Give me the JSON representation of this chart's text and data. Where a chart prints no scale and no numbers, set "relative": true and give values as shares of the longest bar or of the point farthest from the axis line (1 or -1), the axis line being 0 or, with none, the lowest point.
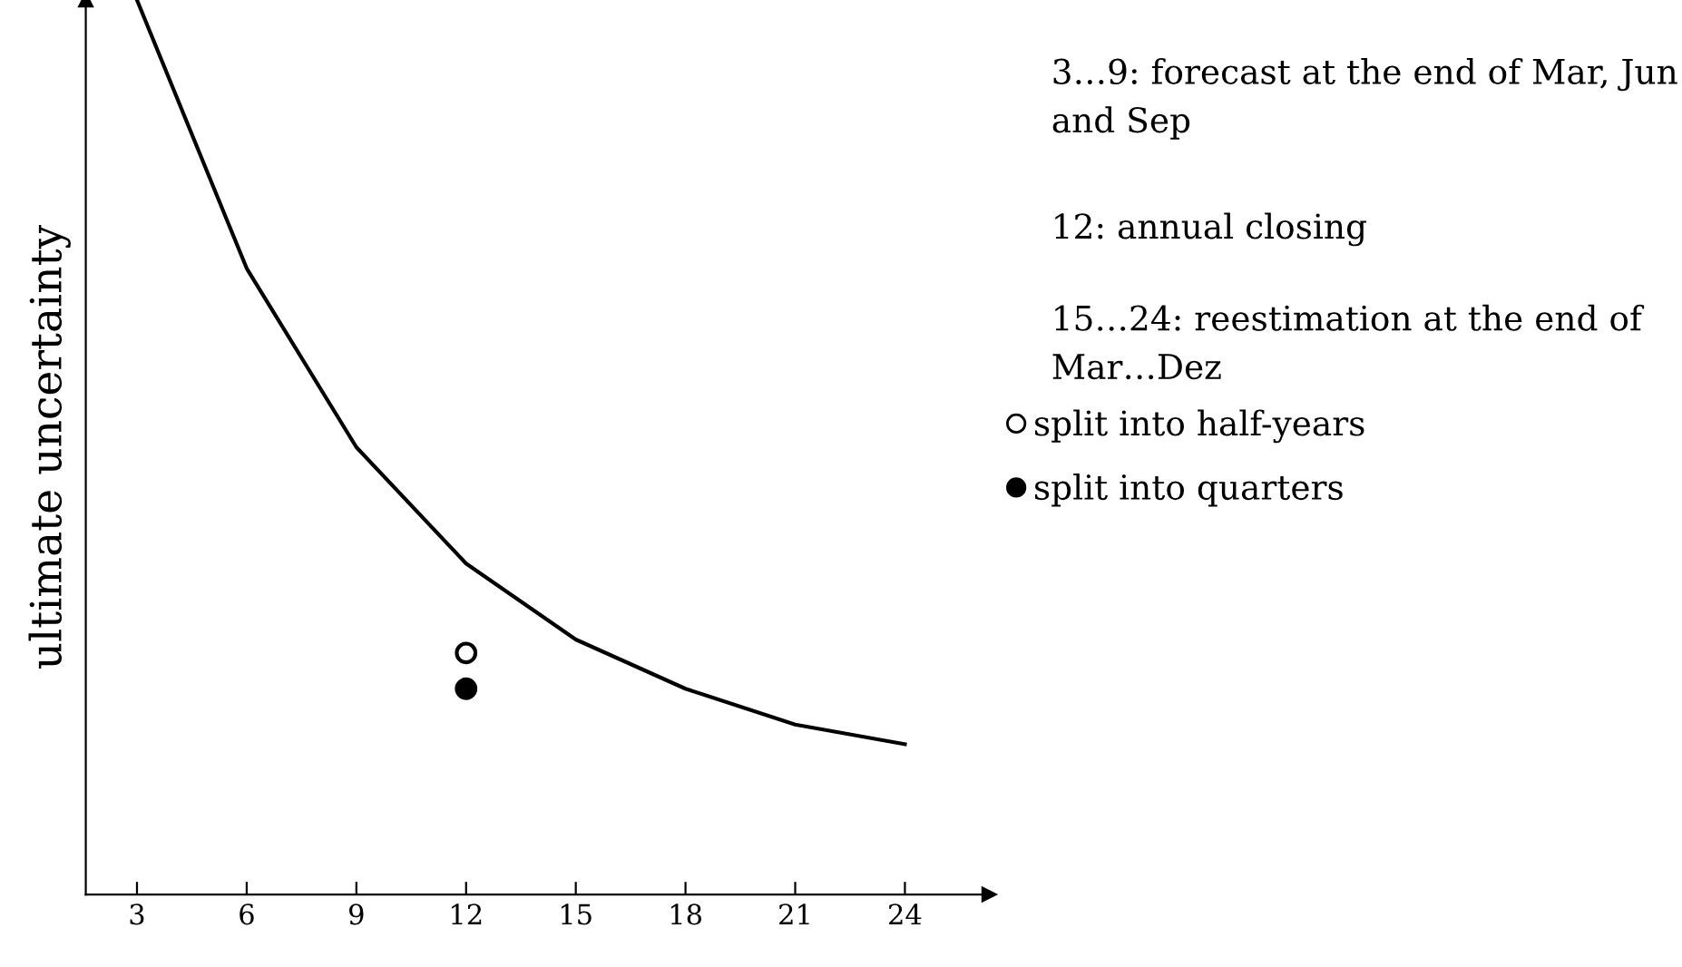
{
  "chart_data": {
    "type": "line",
    "ylabel": "ultimate uncertainty",
    "relative": true,
    "x": [
      3,
      6,
      9,
      12,
      15,
      18,
      21,
      24
    ],
    "xlim": [
      1.6,
      26.3
    ],
    "xticks": [
      3,
      6,
      9,
      12,
      15,
      18,
      21,
      24
    ],
    "tick_labels": "x",
    "grid": false,
    "legend": "right",
    "series": [
      {
        "color": "#000000",
        "marker": "none",
        "line_style": "solid",
        "values": [
          1,
          0.7,
          0.5,
          0.37,
          0.285,
          0.23,
          0.19,
          0.168
        ]
      },
      {
        "type": "scatter",
        "name": "split into half-years",
        "color": "#ffffff",
        "x": [
          12
        ],
        "values": [
          0.27
        ]
      },
      {
        "type": "scatter",
        "name": "split into quarters",
        "color": "#000000",
        "x": [
          12
        ],
        "values": [
          0.23
        ]
      }
    ],
    "annotations": [
      "3…9: forecast at the end of Mar, Jun and Sep",
      "12: annual closing",
      "15…24: reestimation at the end of Mar…Dez"
    ]
  }
}
